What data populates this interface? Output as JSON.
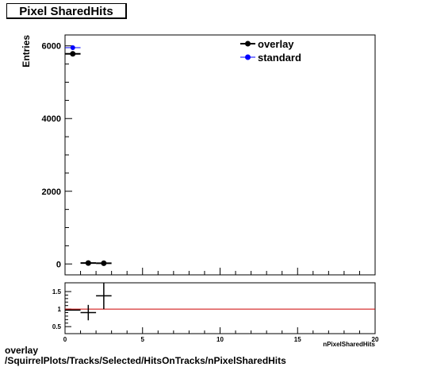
{
  "title": "Pixel SharedHits",
  "caption": {
    "line1": "overlay",
    "line2": "/SquirrelPlots/Tracks/Selected/HitsOnTracks/nPixelSharedHits"
  },
  "colors": {
    "overlay": "#000000",
    "standard": "#0000ff",
    "ratio_line": "#cc0000"
  },
  "chart_data": [
    {
      "type": "scatter",
      "ylabel": "Entries",
      "xlim": [
        0,
        20
      ],
      "ylim": [
        -300,
        6300
      ],
      "yticks": [
        0,
        2000,
        4000,
        6000
      ],
      "legend_position": "top-right",
      "series": [
        {
          "name": "overlay",
          "x": [
            0.5,
            1.5,
            2.5
          ],
          "y": [
            5780,
            25,
            20
          ],
          "xerr": 0.5
        },
        {
          "name": "standard",
          "x": [
            0.5
          ],
          "y": [
            5950
          ],
          "xerr": 0.5
        }
      ]
    },
    {
      "type": "scatter",
      "xlabel": "nPixelSharedHits",
      "xlim": [
        0,
        20
      ],
      "ylim": [
        0.3,
        1.75
      ],
      "xticks": [
        0,
        5,
        10,
        15,
        20
      ],
      "yticks": [
        0.5,
        1,
        1.5
      ],
      "reference_line": 1,
      "series": [
        {
          "x": [
            0.5,
            1.5,
            2.5
          ],
          "y": [
            0.97,
            0.9,
            1.38
          ],
          "yerr": [
            0.01,
            0.22,
            0.38
          ],
          "xerr": 0.5
        }
      ]
    }
  ]
}
